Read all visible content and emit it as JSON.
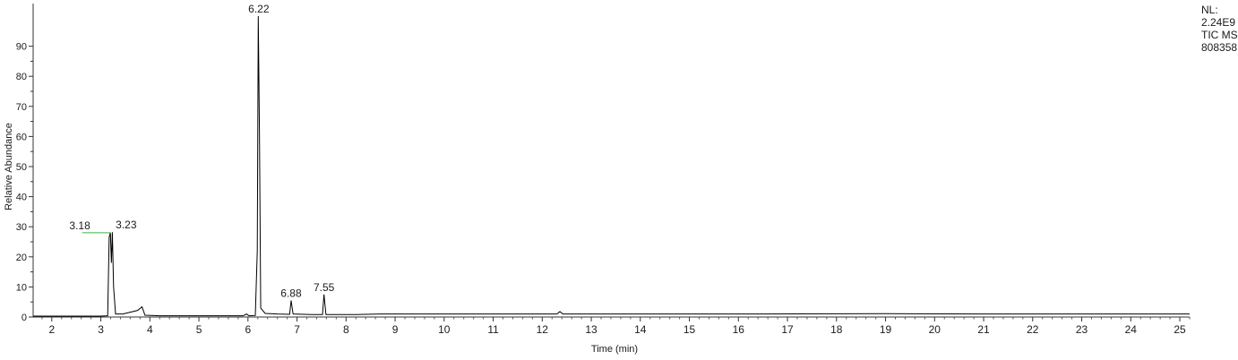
{
  "header_info": {
    "nl_label": "NL:",
    "nl_value": "2.24E9",
    "scan_type": "TIC MS",
    "file_id": "808358"
  },
  "chart_data": {
    "type": "line",
    "title": "",
    "xlabel": "Time (min)",
    "ylabel": "Relative Abundance",
    "xlim": [
      1.62,
      25.2
    ],
    "ylim": [
      0,
      100
    ],
    "x_ticks": [
      2,
      3,
      4,
      5,
      6,
      7,
      8,
      9,
      10,
      11,
      12,
      13,
      14,
      15,
      16,
      17,
      18,
      19,
      20,
      21,
      22,
      23,
      24,
      25
    ],
    "y_ticks": [
      0,
      10,
      20,
      30,
      40,
      50,
      60,
      70,
      80,
      90
    ],
    "grid": false,
    "line_color": "#000000",
    "baseline_marker_color": "#3cb043",
    "series": [
      {
        "points": [
          [
            1.62,
            0.3
          ],
          [
            3.0,
            0.3
          ],
          [
            3.14,
            0.4
          ],
          [
            3.17,
            26.5
          ],
          [
            3.195,
            28.0
          ],
          [
            3.215,
            18.0
          ],
          [
            3.235,
            28.2
          ],
          [
            3.26,
            10.0
          ],
          [
            3.3,
            1.0
          ],
          [
            3.45,
            1.0
          ],
          [
            3.6,
            1.6
          ],
          [
            3.75,
            2.2
          ],
          [
            3.84,
            3.4
          ],
          [
            3.9,
            0.6
          ],
          [
            4.2,
            0.4
          ],
          [
            5.9,
            0.4
          ],
          [
            5.97,
            1.0
          ],
          [
            6.02,
            0.4
          ],
          [
            6.15,
            0.5
          ],
          [
            6.19,
            22.0
          ],
          [
            6.21,
            100.0
          ],
          [
            6.235,
            60.0
          ],
          [
            6.26,
            3.0
          ],
          [
            6.35,
            1.2
          ],
          [
            6.6,
            1.0
          ],
          [
            6.85,
            0.9
          ],
          [
            6.88,
            5.5
          ],
          [
            6.92,
            1.0
          ],
          [
            7.3,
            0.8
          ],
          [
            7.52,
            0.8
          ],
          [
            7.55,
            7.5
          ],
          [
            7.59,
            0.8
          ],
          [
            8.2,
            0.8
          ],
          [
            8.7,
            1.0
          ],
          [
            12.3,
            1.0
          ],
          [
            12.36,
            1.8
          ],
          [
            12.42,
            1.0
          ],
          [
            16.5,
            1.0
          ],
          [
            19.0,
            1.1
          ],
          [
            21.0,
            1.0
          ],
          [
            25.2,
            1.0
          ]
        ]
      }
    ],
    "peak_labels": [
      {
        "label": "3.18",
        "x": 3.18,
        "y": 28.0
      },
      {
        "label": "3.23",
        "x": 3.23,
        "y": 28.2
      },
      {
        "label": "6.22",
        "x": 6.22,
        "y": 100.0
      },
      {
        "label": "6.88",
        "x": 6.88,
        "y": 5.5
      },
      {
        "label": "7.55",
        "x": 7.55,
        "y": 7.5
      }
    ]
  }
}
